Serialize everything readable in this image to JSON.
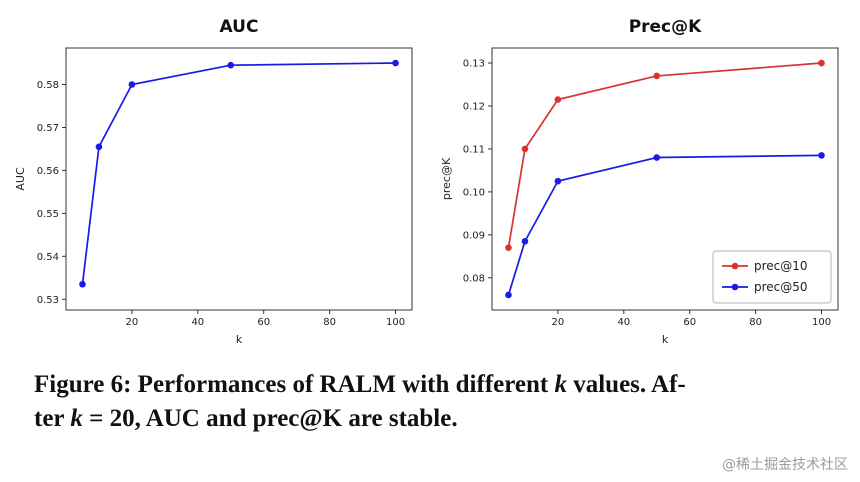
{
  "page": {
    "background": "#ffffff",
    "watermark": "@稀土掘金技术社区"
  },
  "caption": {
    "line1_pre": "Figure 6: Performances of RALM with different ",
    "line1_k": "k",
    "line1_post": " values. Af-",
    "line2_pre": "ter ",
    "line2_k": "k",
    "line2_post": " = 20, AUC and prec@K are stable."
  },
  "chart_data": [
    {
      "type": "line",
      "title": "AUC",
      "xlabel": "k",
      "ylabel": "AUC",
      "x": [
        5,
        10,
        20,
        50,
        100
      ],
      "xlim": [
        0,
        105
      ],
      "ylim": [
        0.5275,
        0.5885
      ],
      "xticks": [
        20,
        40,
        60,
        80,
        100
      ],
      "yticks": [
        0.53,
        0.54,
        0.55,
        0.56,
        0.57,
        0.58
      ],
      "ytick_decimals": 2,
      "grid": false,
      "series": [
        {
          "name": "AUC",
          "color": "#1a1ae6",
          "values": [
            0.5335,
            0.5655,
            0.58,
            0.5845,
            0.585
          ]
        }
      ],
      "legend": null
    },
    {
      "type": "line",
      "title": "Prec@K",
      "xlabel": "k",
      "ylabel": "prec@K",
      "x": [
        5,
        10,
        20,
        50,
        100
      ],
      "xlim": [
        0,
        105
      ],
      "ylim": [
        0.0725,
        0.1335
      ],
      "xticks": [
        20,
        40,
        60,
        80,
        100
      ],
      "yticks": [
        0.08,
        0.09,
        0.1,
        0.11,
        0.12,
        0.13
      ],
      "ytick_decimals": 2,
      "grid": false,
      "series": [
        {
          "name": "prec@10",
          "color": "#d93330",
          "values": [
            0.087,
            0.11,
            0.1215,
            0.127,
            0.13
          ]
        },
        {
          "name": "prec@50",
          "color": "#1a1ae6",
          "values": [
            0.076,
            0.0885,
            0.1025,
            0.108,
            0.1085
          ]
        }
      ],
      "legend": {
        "position": "lower right",
        "entries": [
          "prec@10",
          "prec@50"
        ]
      }
    }
  ]
}
